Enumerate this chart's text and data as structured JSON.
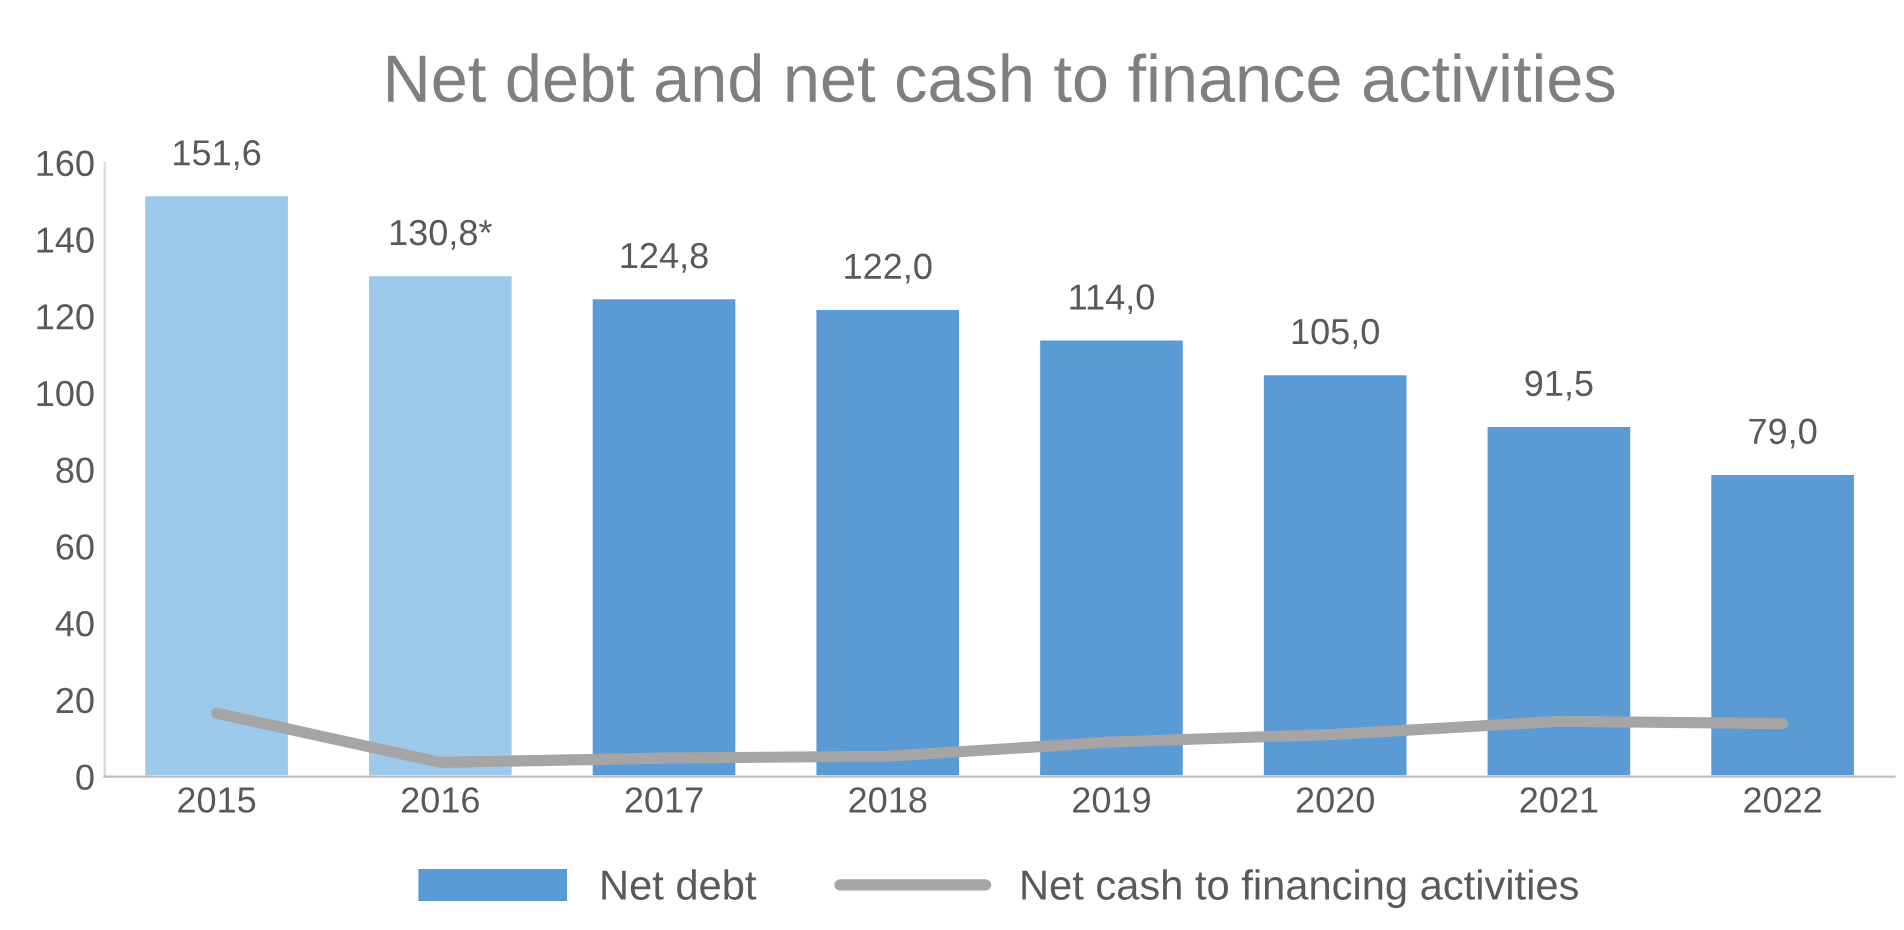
{
  "chart_data": {
    "type": "bar",
    "title": "Net debt and net cash to finance activities",
    "categories": [
      "2015",
      "2016",
      "2017",
      "2018",
      "2019",
      "2020",
      "2021",
      "2022"
    ],
    "series": [
      {
        "name": "Net debt",
        "color": "#5b9bd5",
        "colors": [
          "#9dc9ea",
          "#9dc9ea",
          "#5b9bd5",
          "#5b9bd5",
          "#5b9bd5",
          "#5b9bd5",
          "#5b9bd5",
          "#5b9bd5"
        ],
        "values": [
          151.6,
          130.8,
          124.8,
          122.0,
          114.0,
          105.0,
          91.5,
          79.0
        ],
        "value_labels": [
          "151,6",
          "130,8*",
          "124,8",
          "122,0",
          "114,0",
          "105,0",
          "91,5",
          "79,0"
        ]
      },
      {
        "name": "Net cash to financing activities",
        "type": "line",
        "color": "#a5a5a5",
        "values": [
          16.5,
          3.7,
          4.8,
          5.3,
          9.0,
          11.0,
          14.4,
          13.8
        ]
      }
    ],
    "ylim": [
      0,
      160
    ],
    "yticks": [
      0,
      20,
      40,
      60,
      80,
      100,
      120,
      140,
      160
    ],
    "legend": "bottom",
    "grid": false,
    "line_style": "solid",
    "marker": "none"
  }
}
